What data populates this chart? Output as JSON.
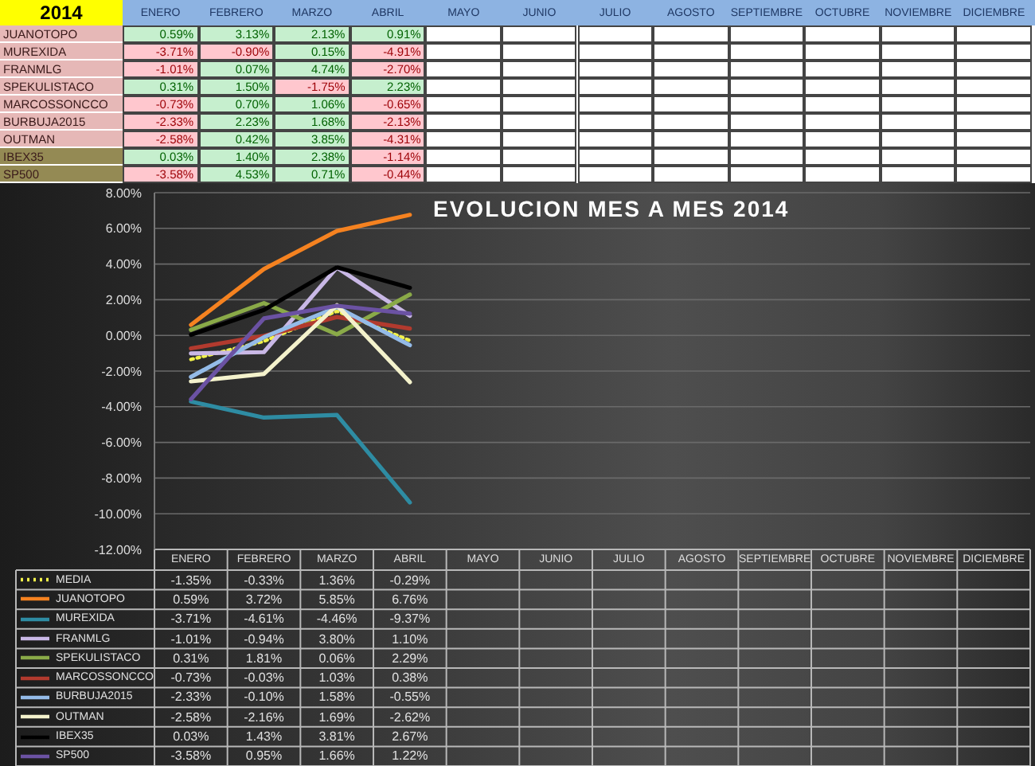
{
  "chart_data": [
    {
      "type": "heatmap",
      "title": "2014",
      "categories": [
        "ENERO",
        "FEBRERO",
        "MARZO",
        "ABRIL",
        "MAYO",
        "JUNIO",
        "JULIO",
        "AGOSTO",
        "SEPTIEMBRE",
        "OCTUBRE",
        "NOVIEMBRE",
        "DICIEMBRE"
      ],
      "y_categories": [
        "JUANOTOPO",
        "MUREXIDA",
        "FRANMLG",
        "SPEKULISTACO",
        "MARCOSSONCCO",
        "BURBUJA2015",
        "OUTMAN",
        "IBEX35",
        "SP500"
      ],
      "cells": [
        [
          0.59,
          3.13,
          2.13,
          0.91,
          null,
          null,
          null,
          null,
          null,
          null,
          null,
          null
        ],
        [
          -3.71,
          -0.9,
          0.15,
          -4.91,
          null,
          null,
          null,
          null,
          null,
          null,
          null,
          null
        ],
        [
          -1.01,
          0.07,
          4.74,
          -2.7,
          null,
          null,
          null,
          null,
          null,
          null,
          null,
          null
        ],
        [
          0.31,
          1.5,
          -1.75,
          2.23,
          null,
          null,
          null,
          null,
          null,
          null,
          null,
          null
        ],
        [
          -0.73,
          0.7,
          1.06,
          -0.65,
          null,
          null,
          null,
          null,
          null,
          null,
          null,
          null
        ],
        [
          -2.33,
          2.23,
          1.68,
          -2.13,
          null,
          null,
          null,
          null,
          null,
          null,
          null,
          null
        ],
        [
          -2.58,
          0.42,
          3.85,
          -4.31,
          null,
          null,
          null,
          null,
          null,
          null,
          null,
          null
        ],
        [
          0.03,
          1.4,
          2.38,
          -1.14,
          null,
          null,
          null,
          null,
          null,
          null,
          null,
          null
        ],
        [
          -3.58,
          4.53,
          0.71,
          -0.44,
          null,
          null,
          null,
          null,
          null,
          null,
          null,
          null
        ]
      ],
      "cell_labels": [
        [
          "0.59%",
          "3.13%",
          "2.13%",
          "0.91%",
          null,
          null,
          null,
          null,
          null,
          null,
          null,
          null
        ],
        [
          "-3.71%",
          "-0.90%",
          "0.15%",
          "-4.91%",
          null,
          null,
          null,
          null,
          null,
          null,
          null,
          null
        ],
        [
          "-1.01%",
          "0.07%",
          "4.74%",
          "-2.70%",
          null,
          null,
          null,
          null,
          null,
          null,
          null,
          null
        ],
        [
          "0.31%",
          "1.50%",
          "-1.75%",
          "2.23%",
          null,
          null,
          null,
          null,
          null,
          null,
          null,
          null
        ],
        [
          "-0.73%",
          "0.70%",
          "1.06%",
          "-0.65%",
          null,
          null,
          null,
          null,
          null,
          null,
          null,
          null
        ],
        [
          "-2.33%",
          "2.23%",
          "1.68%",
          "-2.13%",
          null,
          null,
          null,
          null,
          null,
          null,
          null,
          null
        ],
        [
          "-2.58%",
          "0.42%",
          "3.85%",
          "-4.31%",
          null,
          null,
          null,
          null,
          null,
          null,
          null,
          null
        ],
        [
          "0.03%",
          "1.40%",
          "2.38%",
          "-1.14%",
          null,
          null,
          null,
          null,
          null,
          null,
          null,
          null
        ],
        [
          "-3.58%",
          "4.53%",
          "0.71%",
          "-0.44%",
          null,
          null,
          null,
          null,
          null,
          null,
          null,
          null
        ]
      ]
    },
    {
      "type": "line",
      "title": "EVOLUCION MES A MES 2014",
      "categories": [
        "ENERO",
        "FEBRERO",
        "MARZO",
        "ABRIL",
        "MAYO",
        "JUNIO",
        "JULIO",
        "AGOSTO",
        "SEPTIEMBRE",
        "OCTUBRE",
        "NOVIEMBRE",
        "DICIEMBRE"
      ],
      "ylim": [
        -12,
        8
      ],
      "yticks": [
        {
          "value": -12,
          "label": "-12.00%"
        },
        {
          "value": -10,
          "label": "-10.00%"
        },
        {
          "value": -8,
          "label": "-8.00%"
        },
        {
          "value": -6,
          "label": "-6.00%"
        },
        {
          "value": -4,
          "label": "-4.00%"
        },
        {
          "value": -2,
          "label": "-2.00%"
        },
        {
          "value": 0,
          "label": "0.00%"
        },
        {
          "value": 2,
          "label": "2.00%"
        },
        {
          "value": 4,
          "label": "4.00%"
        },
        {
          "value": 6,
          "label": "6.00%"
        },
        {
          "value": 8,
          "label": "8.00%"
        }
      ],
      "grid": "y",
      "legend": "bottom",
      "marker": "none",
      "line_style": "solid",
      "series": [
        {
          "name": "MEDIA",
          "color": "#f2f24a",
          "line_style": "dotted",
          "values": [
            -1.35,
            -0.33,
            1.36,
            -0.29,
            null,
            null,
            null,
            null,
            null,
            null,
            null,
            null
          ],
          "value_labels": [
            "-1.35%",
            "-0.33%",
            "1.36%",
            "-0.29%",
            null,
            null,
            null,
            null,
            null,
            null,
            null,
            null
          ]
        },
        {
          "name": "JUANOTOPO",
          "color": "#f58220",
          "values": [
            0.59,
            3.72,
            5.85,
            6.76,
            null,
            null,
            null,
            null,
            null,
            null,
            null,
            null
          ],
          "value_labels": [
            "0.59%",
            "3.72%",
            "5.85%",
            "6.76%",
            null,
            null,
            null,
            null,
            null,
            null,
            null,
            null
          ]
        },
        {
          "name": "MUREXIDA",
          "color": "#2e8ca3",
          "values": [
            -3.71,
            -4.61,
            -4.46,
            -9.37,
            null,
            null,
            null,
            null,
            null,
            null,
            null,
            null
          ],
          "value_labels": [
            "-3.71%",
            "-4.61%",
            "-4.46%",
            "-9.37%",
            null,
            null,
            null,
            null,
            null,
            null,
            null,
            null
          ]
        },
        {
          "name": "FRANMLG",
          "color": "#c9b8e6",
          "values": [
            -1.01,
            -0.94,
            3.8,
            1.1,
            null,
            null,
            null,
            null,
            null,
            null,
            null,
            null
          ],
          "value_labels": [
            "-1.01%",
            "-0.94%",
            "3.80%",
            "1.10%",
            null,
            null,
            null,
            null,
            null,
            null,
            null,
            null
          ]
        },
        {
          "name": "SPEKULISTACO",
          "color": "#8aaa48",
          "values": [
            0.31,
            1.81,
            0.06,
            2.29,
            null,
            null,
            null,
            null,
            null,
            null,
            null,
            null
          ],
          "value_labels": [
            "0.31%",
            "1.81%",
            "0.06%",
            "2.29%",
            null,
            null,
            null,
            null,
            null,
            null,
            null,
            null
          ]
        },
        {
          "name": "MARCOSSONCCO",
          "color": "#b23a2e",
          "values": [
            -0.73,
            -0.03,
            1.03,
            0.38,
            null,
            null,
            null,
            null,
            null,
            null,
            null,
            null
          ],
          "value_labels": [
            "-0.73%",
            "-0.03%",
            "1.03%",
            "0.38%",
            null,
            null,
            null,
            null,
            null,
            null,
            null,
            null
          ]
        },
        {
          "name": "BURBUJA2015",
          "color": "#94bbe8",
          "values": [
            -2.33,
            -0.1,
            1.58,
            -0.55,
            null,
            null,
            null,
            null,
            null,
            null,
            null,
            null
          ],
          "value_labels": [
            "-2.33%",
            "-0.10%",
            "1.58%",
            "-0.55%",
            null,
            null,
            null,
            null,
            null,
            null,
            null,
            null
          ]
        },
        {
          "name": "OUTMAN",
          "color": "#f4f2cc",
          "values": [
            -2.58,
            -2.16,
            1.69,
            -2.62,
            null,
            null,
            null,
            null,
            null,
            null,
            null,
            null
          ],
          "value_labels": [
            "-2.58%",
            "-2.16%",
            "1.69%",
            "-2.62%",
            null,
            null,
            null,
            null,
            null,
            null,
            null,
            null
          ]
        },
        {
          "name": "IBEX35",
          "color": "#000000",
          "values": [
            0.03,
            1.43,
            3.81,
            2.67,
            null,
            null,
            null,
            null,
            null,
            null,
            null,
            null
          ],
          "value_labels": [
            "0.03%",
            "1.43%",
            "3.81%",
            "2.67%",
            null,
            null,
            null,
            null,
            null,
            null,
            null,
            null
          ]
        },
        {
          "name": "SP500",
          "color": "#6b52a3",
          "values": [
            -3.58,
            0.95,
            1.66,
            1.22,
            null,
            null,
            null,
            null,
            null,
            null,
            null,
            null
          ],
          "value_labels": [
            "-3.58%",
            "0.95%",
            "1.66%",
            "1.22%",
            null,
            null,
            null,
            null,
            null,
            null,
            null,
            null
          ]
        }
      ]
    }
  ]
}
